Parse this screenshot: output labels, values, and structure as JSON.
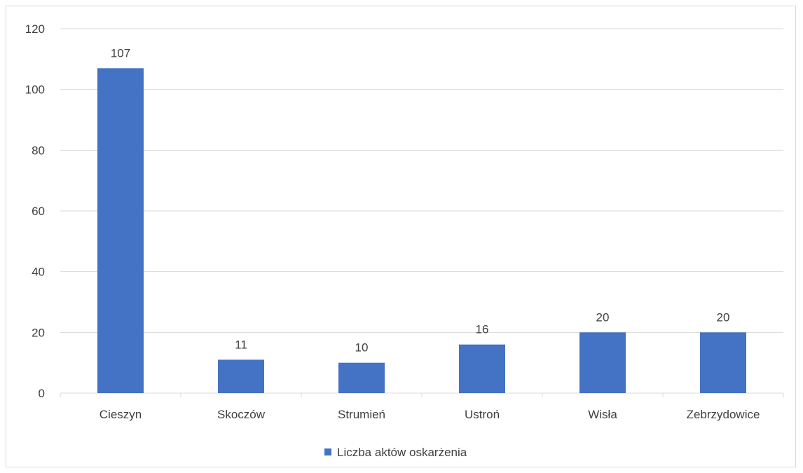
{
  "chart_data": {
    "type": "bar",
    "title": "",
    "xlabel": "",
    "ylabel": "",
    "ylim": [
      0,
      120
    ],
    "yticks": [
      0,
      20,
      40,
      60,
      80,
      100,
      120
    ],
    "grid": true,
    "legend_position": "bottom",
    "categories": [
      "Cieszyn",
      "Skoczów",
      "Strumień",
      "Ustroń",
      "Wisła",
      "Zebrzydowice"
    ],
    "series": [
      {
        "name": "Liczba aktów oskarżenia",
        "color": "#4472c4",
        "values": [
          107,
          11,
          10,
          16,
          20,
          20
        ],
        "labels": [
          "107",
          "11",
          "10",
          "16",
          "20",
          "20"
        ]
      }
    ]
  }
}
